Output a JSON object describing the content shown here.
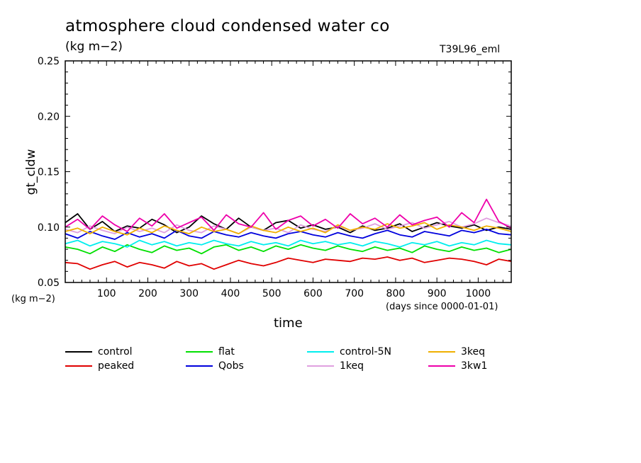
{
  "chart_data": {
    "type": "line",
    "title": "atmosphere cloud condensed water co",
    "units": "(kg m−2)",
    "run_label": "T39L96_eml",
    "xlabel": "time",
    "xunit": "(days since 0000-01-01)",
    "ylabel": "gt_cldw",
    "yunit": "(kg m−2)",
    "xlim": [
      0,
      1080
    ],
    "ylim": [
      0.05,
      0.25
    ],
    "xticks": [
      100,
      200,
      300,
      400,
      500,
      600,
      700,
      800,
      900,
      1000
    ],
    "yticks": [
      "0.05",
      "0.10",
      "0.15",
      "0.20",
      "0.25"
    ],
    "grid": false,
    "legend_position": "bottom",
    "x": [
      0,
      30,
      60,
      90,
      120,
      150,
      180,
      210,
      240,
      270,
      300,
      330,
      360,
      390,
      420,
      450,
      480,
      510,
      540,
      570,
      600,
      630,
      660,
      690,
      720,
      750,
      780,
      810,
      840,
      870,
      900,
      930,
      960,
      990,
      1020,
      1050,
      1080
    ],
    "series": [
      {
        "name": "control",
        "color": "#000000",
        "values": [
          0.104,
          0.112,
          0.098,
          0.105,
          0.096,
          0.101,
          0.099,
          0.107,
          0.102,
          0.095,
          0.1,
          0.11,
          0.103,
          0.098,
          0.108,
          0.1,
          0.097,
          0.104,
          0.106,
          0.099,
          0.102,
          0.098,
          0.1,
          0.095,
          0.101,
          0.097,
          0.099,
          0.103,
          0.096,
          0.1,
          0.104,
          0.101,
          0.099,
          0.102,
          0.097,
          0.1,
          0.098
        ]
      },
      {
        "name": "peaked",
        "color": "#e00000",
        "values": [
          0.068,
          0.067,
          0.062,
          0.066,
          0.069,
          0.064,
          0.068,
          0.066,
          0.063,
          0.069,
          0.065,
          0.067,
          0.062,
          0.066,
          0.07,
          0.067,
          0.065,
          0.068,
          0.072,
          0.07,
          0.068,
          0.071,
          0.07,
          0.069,
          0.072,
          0.071,
          0.073,
          0.07,
          0.072,
          0.068,
          0.07,
          0.072,
          0.071,
          0.069,
          0.066,
          0.071,
          0.069
        ]
      },
      {
        "name": "flat",
        "color": "#00e000",
        "values": [
          0.082,
          0.08,
          0.076,
          0.082,
          0.078,
          0.084,
          0.08,
          0.077,
          0.083,
          0.079,
          0.081,
          0.076,
          0.082,
          0.084,
          0.079,
          0.082,
          0.078,
          0.083,
          0.08,
          0.084,
          0.081,
          0.079,
          0.083,
          0.08,
          0.078,
          0.082,
          0.079,
          0.081,
          0.077,
          0.083,
          0.08,
          0.078,
          0.082,
          0.079,
          0.081,
          0.077,
          0.08
        ]
      },
      {
        "name": "Qobs",
        "color": "#0000dd",
        "values": [
          0.094,
          0.09,
          0.096,
          0.092,
          0.089,
          0.095,
          0.091,
          0.094,
          0.09,
          0.097,
          0.092,
          0.09,
          0.096,
          0.093,
          0.091,
          0.095,
          0.092,
          0.09,
          0.094,
          0.096,
          0.093,
          0.091,
          0.095,
          0.092,
          0.09,
          0.094,
          0.097,
          0.093,
          0.091,
          0.096,
          0.094,
          0.092,
          0.097,
          0.095,
          0.098,
          0.094,
          0.093
        ]
      },
      {
        "name": "control-5N",
        "color": "#00eeee",
        "values": [
          0.085,
          0.088,
          0.083,
          0.087,
          0.085,
          0.082,
          0.088,
          0.084,
          0.087,
          0.083,
          0.086,
          0.084,
          0.088,
          0.085,
          0.083,
          0.087,
          0.084,
          0.086,
          0.083,
          0.088,
          0.085,
          0.087,
          0.084,
          0.086,
          0.083,
          0.087,
          0.085,
          0.082,
          0.086,
          0.084,
          0.087,
          0.083,
          0.086,
          0.084,
          0.088,
          0.085,
          0.084
        ]
      },
      {
        "name": "1keq",
        "color": "#e0a0e0",
        "values": [
          0.098,
          0.095,
          0.101,
          0.097,
          0.094,
          0.1,
          0.096,
          0.099,
          0.095,
          0.102,
          0.097,
          0.095,
          0.101,
          0.098,
          0.094,
          0.1,
          0.097,
          0.099,
          0.095,
          0.102,
          0.098,
          0.096,
          0.101,
          0.097,
          0.099,
          0.103,
          0.098,
          0.101,
          0.104,
          0.099,
          0.102,
          0.105,
          0.1,
          0.103,
          0.108,
          0.104,
          0.101
        ]
      },
      {
        "name": "3keq",
        "color": "#f0b000",
        "values": [
          0.096,
          0.099,
          0.094,
          0.1,
          0.096,
          0.093,
          0.099,
          0.095,
          0.101,
          0.097,
          0.094,
          0.1,
          0.096,
          0.098,
          0.094,
          0.101,
          0.097,
          0.095,
          0.1,
          0.096,
          0.099,
          0.095,
          0.102,
          0.097,
          0.1,
          0.098,
          0.103,
          0.099,
          0.101,
          0.104,
          0.098,
          0.102,
          0.1,
          0.097,
          0.101,
          0.099,
          0.096
        ]
      },
      {
        "name": "3kw1",
        "color": "#ee00aa",
        "values": [
          0.1,
          0.107,
          0.098,
          0.11,
          0.102,
          0.096,
          0.108,
          0.101,
          0.112,
          0.099,
          0.104,
          0.109,
          0.097,
          0.111,
          0.103,
          0.1,
          0.113,
          0.098,
          0.106,
          0.11,
          0.101,
          0.107,
          0.099,
          0.112,
          0.103,
          0.108,
          0.1,
          0.111,
          0.102,
          0.106,
          0.109,
          0.1,
          0.113,
          0.104,
          0.125,
          0.105,
          0.099
        ]
      }
    ]
  }
}
